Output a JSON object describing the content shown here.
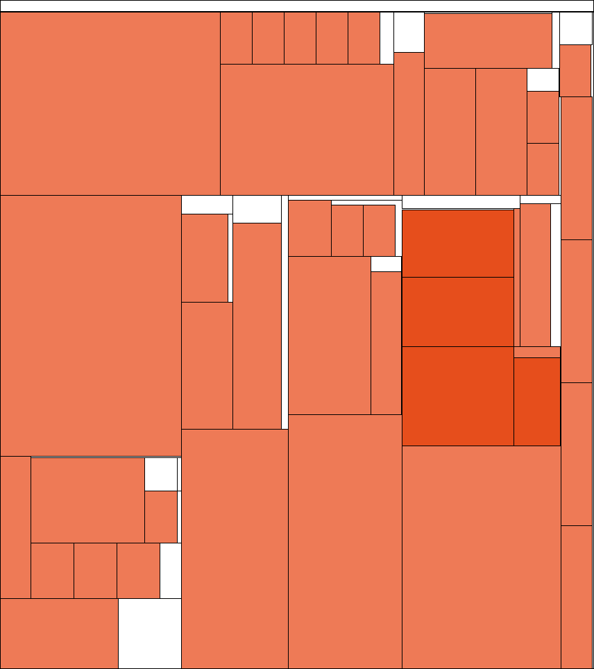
{
  "chart_data": {
    "type": "treemap",
    "title": "",
    "colors": {
      "base": "#ee7a56",
      "highlight": "#e64e1c",
      "background": "#ffffff",
      "stroke": "#000000"
    },
    "legend": "none",
    "grid": false
  }
}
